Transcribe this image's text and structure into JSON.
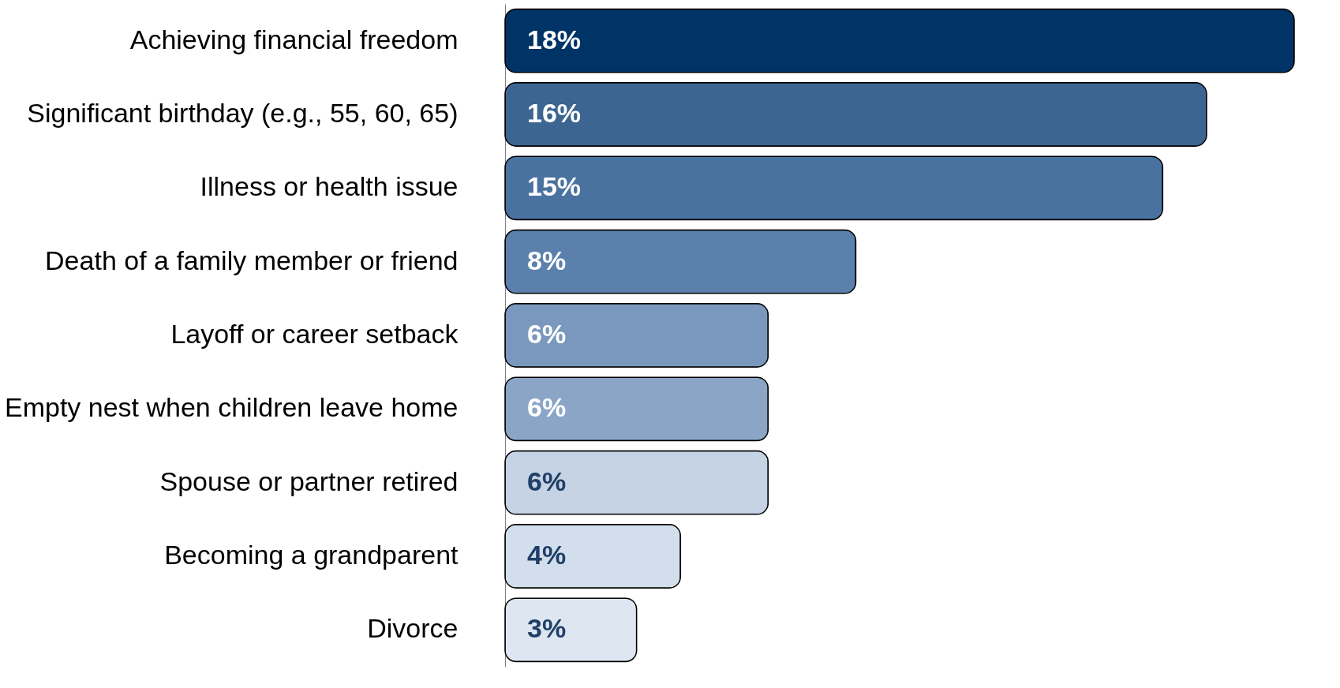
{
  "chart_data": {
    "type": "bar",
    "orientation": "horizontal",
    "categories": [
      "Achieving financial freedom",
      "Significant birthday (e.g., 55, 60, 65)",
      "Illness or health issue",
      "Death of a family member or friend",
      "Layoff or career setback",
      "Empty nest when children leave home",
      "Spouse or partner retired",
      "Becoming a grandparent",
      "Divorce"
    ],
    "values": [
      18,
      16,
      15,
      8,
      6,
      6,
      6,
      4,
      3
    ],
    "colors": [
      "#003366",
      "#3d6591",
      "#4a72a0",
      "#5a80ab",
      "#7a98bd",
      "#8aa5c6",
      "#c5d3e5",
      "#d3deec",
      "#dde6f1"
    ],
    "value_labels": [
      "18%",
      "16%",
      "15%",
      "8%",
      "6%",
      "6%",
      "6%",
      "4%",
      "3%"
    ],
    "grid": false
  }
}
